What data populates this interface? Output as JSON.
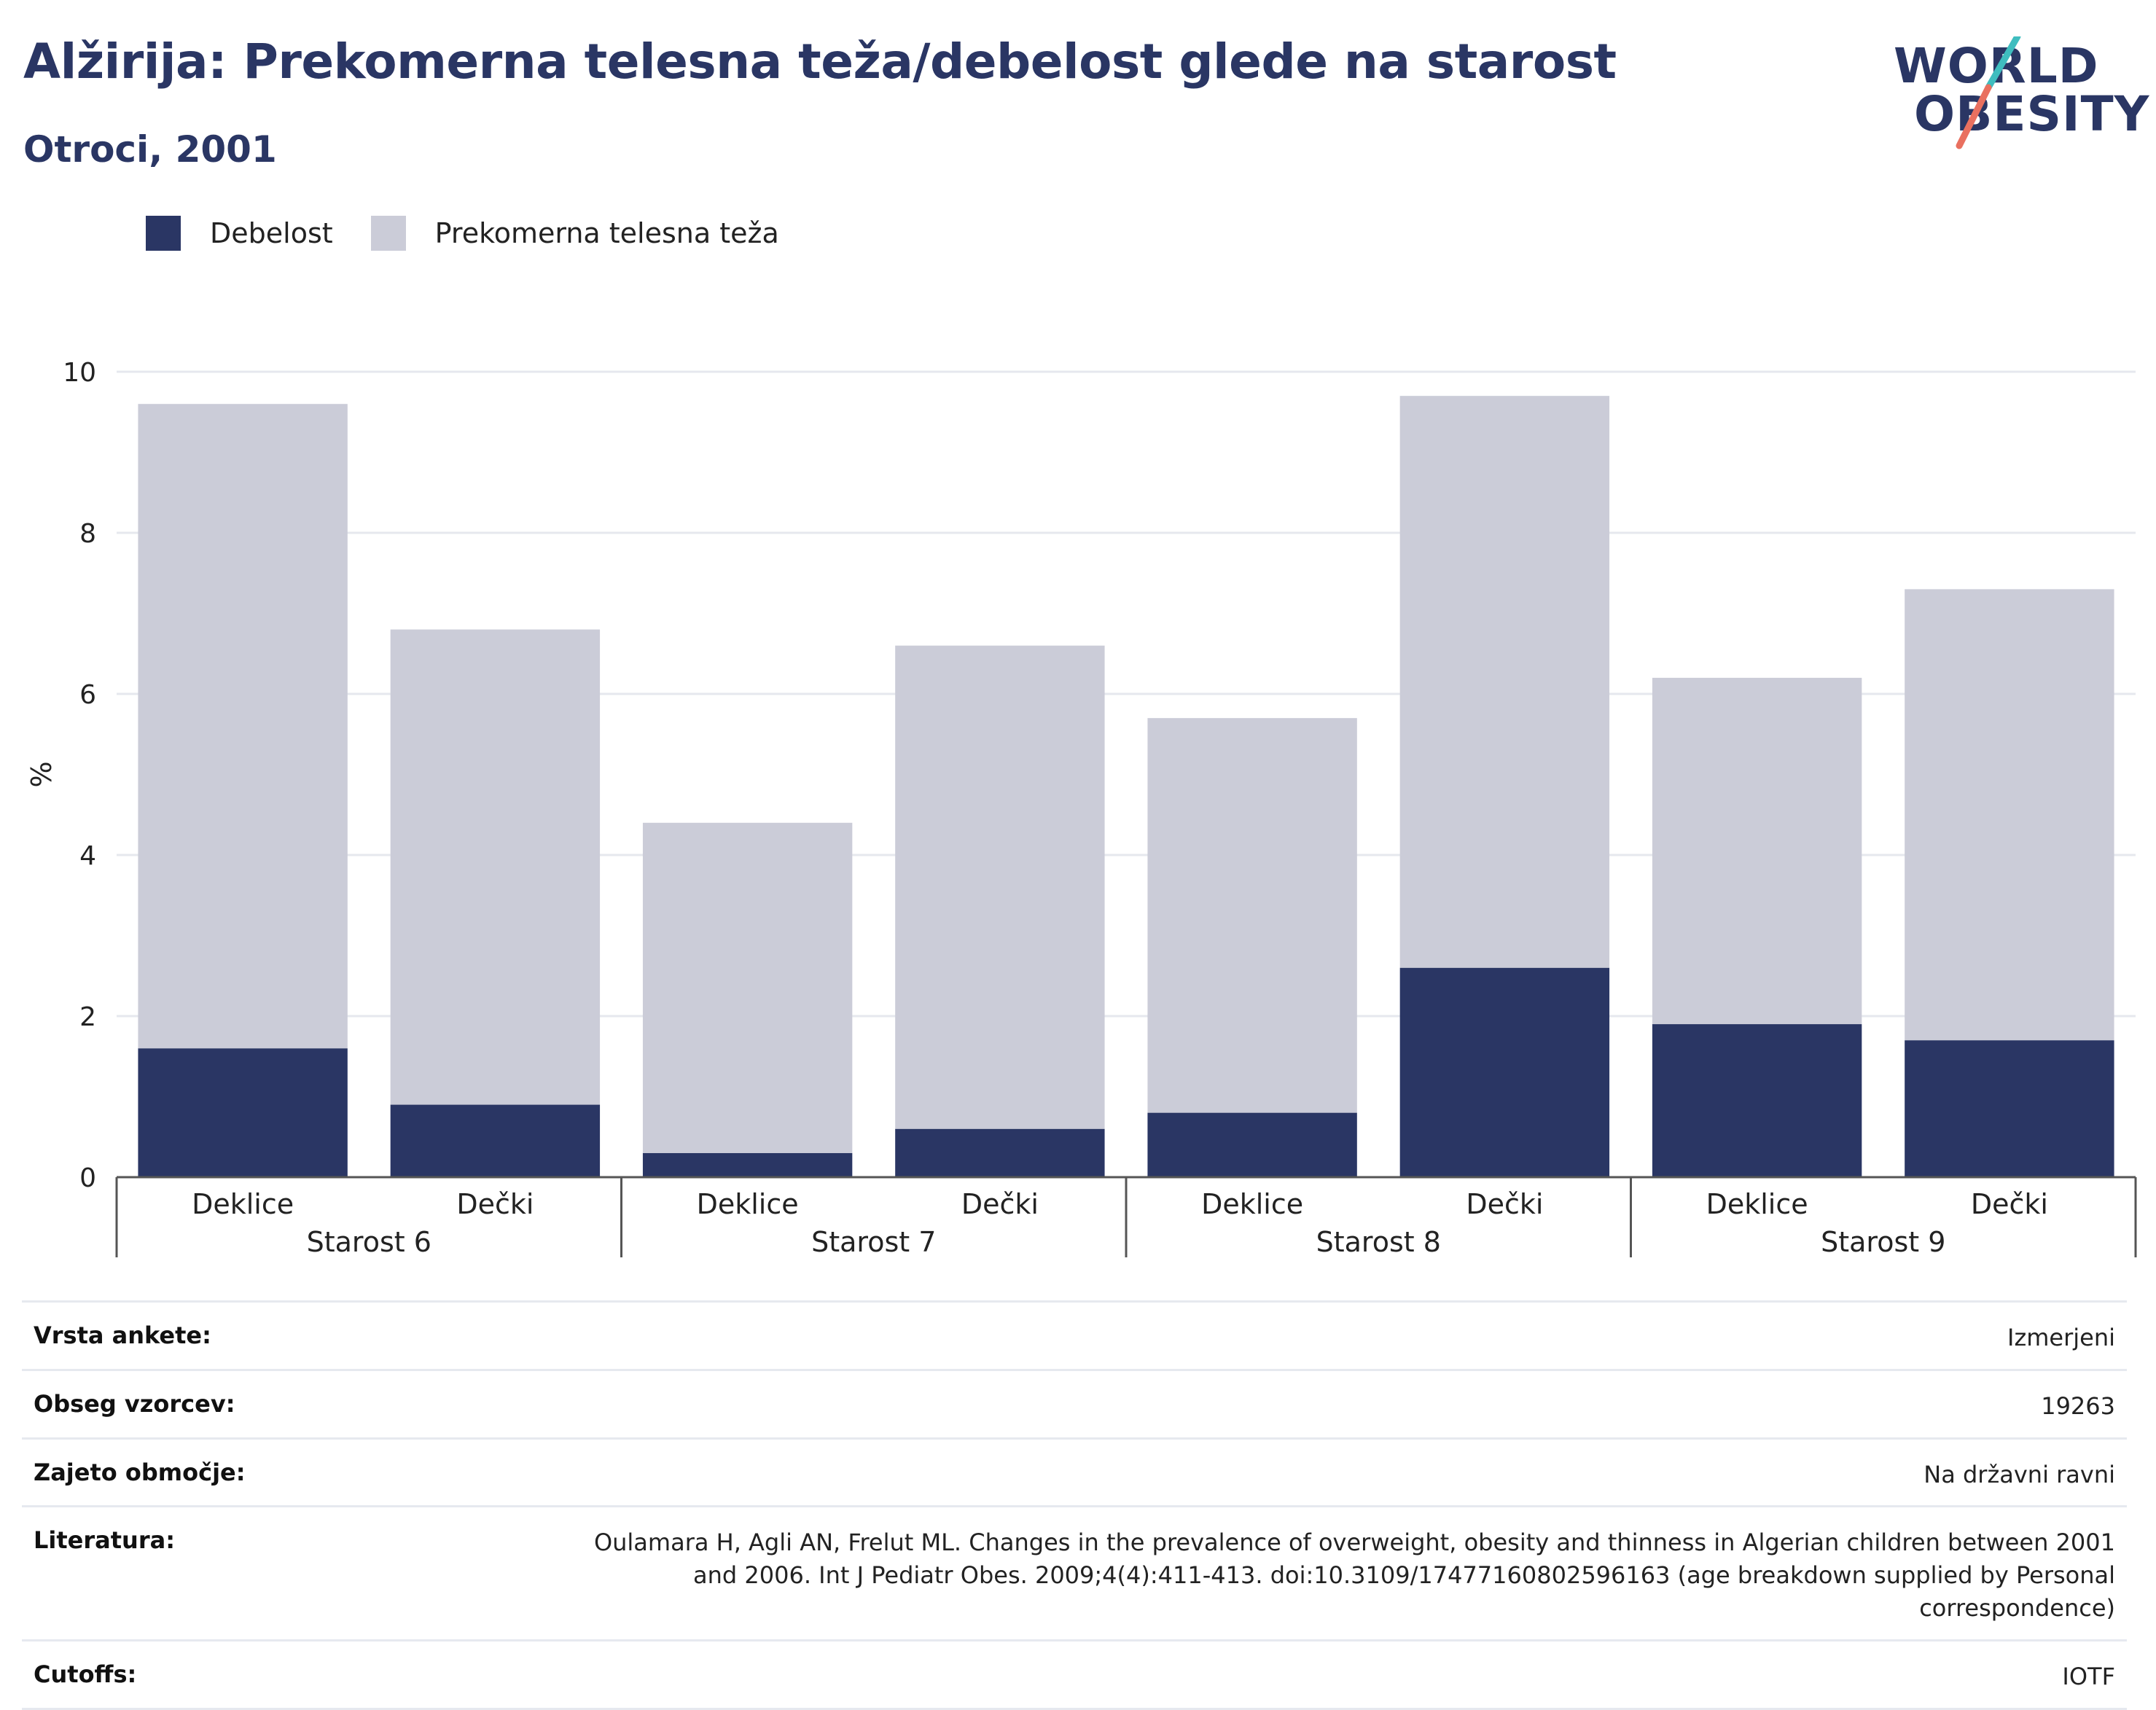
{
  "header": {
    "title": "Alžirija: Prekomerna telesna teža/debelost glede na starost",
    "subtitle": "Otroci, 2001"
  },
  "logo": {
    "line1": "WORLD",
    "line2": "OBESITY"
  },
  "colors": {
    "obesity": "#2a3664",
    "overweight": "#cbccd8",
    "title": "#2a3664",
    "logo_teal": "#3fbdbf",
    "logo_coral": "#e9705f"
  },
  "legend": [
    {
      "label": "Debelost",
      "color": "#2a3664"
    },
    {
      "label": "Prekomerna telesna teža",
      "color": "#cbccd8"
    }
  ],
  "chart_data": {
    "type": "bar",
    "stacked": true,
    "ylabel": "%",
    "ylim": [
      0,
      10
    ],
    "yticks": [
      0,
      2,
      4,
      6,
      8,
      10
    ],
    "grid": true,
    "legend_position": "top-left",
    "groups": [
      "Starost 6",
      "Starost 7",
      "Starost 8",
      "Starost 9"
    ],
    "categories": [
      "Deklice",
      "Dečki",
      "Deklice",
      "Dečki",
      "Deklice",
      "Dečki",
      "Deklice",
      "Dečki"
    ],
    "series": [
      {
        "name": "Debelost",
        "values": [
          1.6,
          0.9,
          0.3,
          0.6,
          0.8,
          2.6,
          1.9,
          1.7
        ]
      },
      {
        "name": "Prekomerna telesna teža",
        "values": [
          8.0,
          5.9,
          4.1,
          6.0,
          4.9,
          7.1,
          4.3,
          5.6
        ]
      }
    ]
  },
  "meta": [
    {
      "label": "Vrsta ankete:",
      "value": "Izmerjeni"
    },
    {
      "label": "Obseg vzorcev:",
      "value": "19263"
    },
    {
      "label": "Zajeto območje:",
      "value": "Na državni ravni"
    },
    {
      "label": "Literatura:",
      "value": "Oulamara H, Agli AN, Frelut ML. Changes in the prevalence of overweight, obesity and thinness in Algerian children between 2001 and 2006. Int J Pediatr Obes. 2009;4(4):411-413. doi:10.3109/17477160802596163 (age breakdown supplied by Personal correspondence)"
    },
    {
      "label": "Cutoffs:",
      "value": "IOTF"
    }
  ]
}
